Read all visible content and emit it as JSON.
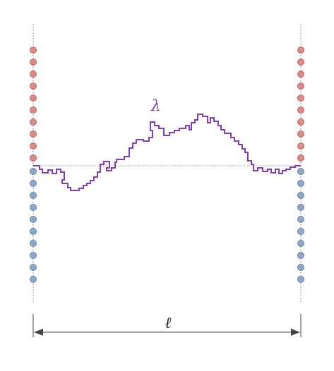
{
  "labels": {
    "path_symbol": "λ",
    "length_symbol": "ℓ"
  },
  "colors": {
    "upper_dot_fill": "#d98b85",
    "upper_dot_stroke": "#b0605c",
    "lower_dot_fill": "#8ea7c8",
    "lower_dot_stroke": "#5f7ea8",
    "path": "#7f3fb8",
    "guide": "#999999",
    "arrow": "#444444"
  },
  "dots": {
    "upper_per_side": 10,
    "lower_per_side": 10
  }
}
